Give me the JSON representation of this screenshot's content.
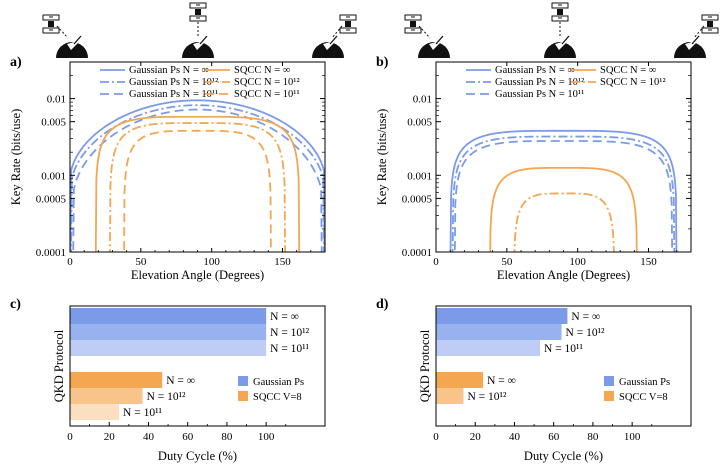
{
  "chart_data": [
    {
      "id": "a",
      "panel_label": "a)",
      "type": "line",
      "title": "",
      "xlabel": "Elevation Angle (Degrees)",
      "ylabel": "Key Rate (bits/use)",
      "xlim": [
        0,
        180
      ],
      "ylim": [
        0.0001,
        0.03
      ],
      "yscale": "log",
      "grid": false,
      "xticks": [
        "0",
        "50",
        "100",
        "150"
      ],
      "xtick_values": [
        0,
        50,
        100,
        150
      ],
      "yticks": [
        "0.0001",
        "0.0005",
        "0.001",
        "0.005",
        "0.01"
      ],
      "ytick_values": [
        0.0001,
        0.0005,
        0.001,
        0.005,
        0.01
      ],
      "legend_position": "top",
      "legend_columns": [
        [
          {
            "label": "Gaussian Ps N = ∞",
            "series": 0
          },
          {
            "label": "Gaussian Ps N = 10¹²",
            "series": 1
          },
          {
            "label": "Gaussian Ps N = 10¹¹",
            "series": 2
          }
        ],
        [
          {
            "label": "SQCC N = ∞",
            "series": 3
          },
          {
            "label": "SQCC N = 10¹²",
            "series": 4
          },
          {
            "label": "SQCC N = 10¹¹",
            "series": 5
          }
        ]
      ],
      "series": [
        {
          "name": "Gaussian Ps N = ∞",
          "color": "#7b9be9",
          "dash": "solid",
          "range": [
            0,
            180
          ],
          "peak": 0.0095,
          "edge": 0.0009
        },
        {
          "name": "Gaussian Ps N = 10¹²",
          "color": "#7b9be9",
          "dash": "dashdot",
          "range": [
            0.5,
            179.5
          ],
          "peak": 0.0082,
          "edge": 0.0007
        },
        {
          "name": "Gaussian Ps N = 10¹¹",
          "color": "#7b9be9",
          "dash": "dashed",
          "range": [
            2,
            178
          ],
          "peak": 0.0072,
          "edge": 0.0005
        },
        {
          "name": "SQCC N = ∞",
          "color": "#f5a650",
          "dash": "solid",
          "range": [
            18,
            162
          ],
          "peak": 0.0058
        },
        {
          "name": "SQCC N = 10¹²",
          "color": "#f5a650",
          "dash": "dashdot",
          "range": [
            28,
            152
          ],
          "peak": 0.0048
        },
        {
          "name": "SQCC N = 10¹¹",
          "color": "#f5a650",
          "dash": "dashed",
          "range": [
            38,
            142
          ],
          "peak": 0.0038
        }
      ]
    },
    {
      "id": "b",
      "panel_label": "b)",
      "type": "line",
      "title": "",
      "xlabel": "Elevation Angle (Degrees)",
      "ylabel": "Key Rate (bits/use)",
      "xlim": [
        0,
        180
      ],
      "ylim": [
        0.0001,
        0.03
      ],
      "yscale": "log",
      "grid": false,
      "xticks": [
        "0",
        "50",
        "100",
        "150"
      ],
      "xtick_values": [
        0,
        50,
        100,
        150
      ],
      "yticks": [
        "0.0001",
        "0.0005",
        "0.001",
        "0.005",
        "0.01"
      ],
      "ytick_values": [
        0.0001,
        0.0005,
        0.001,
        0.005,
        0.01
      ],
      "legend_position": "top",
      "legend_columns": [
        [
          {
            "label": "Gaussian Ps N = ∞",
            "series": 0
          },
          {
            "label": "Gaussian Ps N = 10¹²",
            "series": 1
          },
          {
            "label": "Gaussian Ps N = 10¹¹",
            "series": 2
          }
        ],
        [
          {
            "label": "SQCC N = ∞",
            "series": 3
          },
          {
            "label": "SQCC N = 10¹²",
            "series": 4
          }
        ]
      ],
      "series": [
        {
          "name": "Gaussian Ps N = ∞",
          "color": "#7b9be9",
          "dash": "solid",
          "range": [
            10,
            170
          ],
          "peak": 0.0038
        },
        {
          "name": "Gaussian Ps N = 10¹²",
          "color": "#7b9be9",
          "dash": "dashdot",
          "range": [
            11.5,
            168.5
          ],
          "peak": 0.0032
        },
        {
          "name": "Gaussian Ps N = 10¹¹",
          "color": "#7b9be9",
          "dash": "dashed",
          "range": [
            13,
            167
          ],
          "peak": 0.0028
        },
        {
          "name": "SQCC N = ∞",
          "color": "#f5a650",
          "dash": "solid",
          "range": [
            38,
            142
          ],
          "peak": 0.00125
        },
        {
          "name": "SQCC N = 10¹²",
          "color": "#f5a650",
          "dash": "dashdot",
          "range": [
            55,
            126
          ],
          "peak": 0.00058
        }
      ]
    },
    {
      "id": "c",
      "panel_label": "c)",
      "type": "bar",
      "orientation": "horizontal",
      "xlabel": "Duty Cycle (%)",
      "ylabel": "QKD Protocol",
      "xlim": [
        0,
        130
      ],
      "xticks": [
        "0",
        "20",
        "40",
        "60",
        "80",
        "100"
      ],
      "xtick_values": [
        0,
        20,
        40,
        60,
        80,
        100
      ],
      "legend_position": "bottom-right",
      "legend": [
        {
          "label": "Gaussian Ps",
          "color": "#7b9be9"
        },
        {
          "label": "SQCC V=8",
          "color": "#f5a650"
        }
      ],
      "bars": [
        {
          "group": "Gaussian Ps",
          "label": "N = ∞",
          "value": 100,
          "color": "#7b9be9"
        },
        {
          "group": "Gaussian Ps",
          "label": "N = 10¹²",
          "value": 100,
          "color": "#98b2f0"
        },
        {
          "group": "Gaussian Ps",
          "label": "N = 10¹¹",
          "value": 100,
          "color": "#bdcdf5"
        },
        {
          "group": "SQCC V=8",
          "label": "N = ∞",
          "value": 47,
          "color": "#f5a650"
        },
        {
          "group": "SQCC V=8",
          "label": "N = 10¹²",
          "value": 37,
          "color": "#f8c48a"
        },
        {
          "group": "SQCC V=8",
          "label": "N = 10¹¹",
          "value": 25,
          "color": "#fbdfbf"
        }
      ]
    },
    {
      "id": "d",
      "panel_label": "d)",
      "type": "bar",
      "orientation": "horizontal",
      "xlabel": "Duty Cycle (%)",
      "ylabel": "QKD Protocol",
      "xlim": [
        0,
        130
      ],
      "xticks": [
        "0",
        "20",
        "40",
        "60",
        "80",
        "100"
      ],
      "xtick_values": [
        0,
        20,
        40,
        60,
        80,
        100
      ],
      "legend_position": "bottom-right",
      "legend": [
        {
          "label": "Gaussian Ps",
          "color": "#7b9be9"
        },
        {
          "label": "SQCC V=8",
          "color": "#f5a650"
        }
      ],
      "bars": [
        {
          "group": "Gaussian Ps",
          "label": "N = ∞",
          "value": 67,
          "color": "#7b9be9"
        },
        {
          "group": "Gaussian Ps",
          "label": "N = 10¹²",
          "value": 64,
          "color": "#98b2f0"
        },
        {
          "group": "Gaussian Ps",
          "label": "N = 10¹¹",
          "value": 53,
          "color": "#bdcdf5"
        },
        {
          "group": "SQCC V=8",
          "label": "N = ∞",
          "value": 24,
          "color": "#f5a650"
        },
        {
          "group": "SQCC V=8",
          "label": "N = 10¹²",
          "value": 14,
          "color": "#f8c48a"
        }
      ]
    }
  ]
}
